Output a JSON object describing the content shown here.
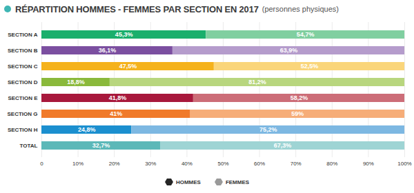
{
  "chart_data": {
    "type": "bar",
    "orientation": "horizontal",
    "stacked": true,
    "title": "RÉPARTITION HOMMES - FEMMES PAR SECTION EN 2017",
    "subtitle": "(personnes physiques)",
    "categories": [
      "SECTION A",
      "SECTION B",
      "SECTION C",
      "SECTION D",
      "SECTION E",
      "SECTION G",
      "SECTION H",
      "TOTAL"
    ],
    "series": [
      {
        "name": "HOMMES",
        "color": "#262626",
        "colors": [
          "#1aaf6c",
          "#7b4fa0",
          "#f5b21b",
          "#8ab93b",
          "#a8183c",
          "#f07a2a",
          "#1b8fcf",
          "#5cb8b8"
        ],
        "values": [
          45.3,
          36.1,
          47.5,
          18.8,
          41.8,
          41,
          24.8,
          32.7
        ],
        "value_labels": [
          "45,3%",
          "36,1%",
          "47,5%",
          "18,8%",
          "41,8%",
          "41%",
          "24,8%",
          "32,7%"
        ]
      },
      {
        "name": "FEMMES",
        "color": "#9a9a9a",
        "colors": [
          "#80cfa0",
          "#b59ccc",
          "#fad57a",
          "#b8d67e",
          "#cc6d78",
          "#f6ad78",
          "#7db8e2",
          "#9ed4d4"
        ],
        "values": [
          54.7,
          63.9,
          52.5,
          81.2,
          58.2,
          59,
          75.2,
          67.3
        ],
        "value_labels": [
          "54,7%",
          "63,9%",
          "52,5%",
          "81,2%",
          "58,2%",
          "59%",
          "75,2%",
          "67,3%"
        ]
      }
    ],
    "xlim": [
      0,
      100
    ],
    "xticks": [
      {
        "value": 0,
        "label": "0"
      },
      {
        "value": 10,
        "label": "10%"
      },
      {
        "value": 20,
        "label": "20%"
      },
      {
        "value": 30,
        "label": "30%"
      },
      {
        "value": 40,
        "label": "40%"
      },
      {
        "value": 50,
        "label": "50%"
      },
      {
        "value": 60,
        "label": "60%"
      },
      {
        "value": 70,
        "label": "70%"
      },
      {
        "value": 80,
        "label": "80%"
      },
      {
        "value": 90,
        "label": "90%"
      },
      {
        "value": 100,
        "label": "100%"
      }
    ],
    "grid": true,
    "data_labels": true,
    "legend": "bottom"
  }
}
